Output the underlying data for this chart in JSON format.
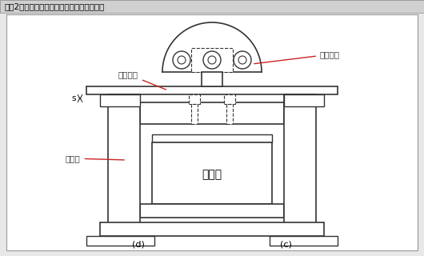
{
  "title": "【囲2】シャンクとダイセットポストの関係",
  "draw_color": "#333333",
  "red_color": "#cc2222",
  "label_shank": "シャンク",
  "label_slide": "スライド",
  "label_post": "ポスト",
  "label_kanagata": "金　型",
  "label_s": "s",
  "label_d": "(d)",
  "label_c": "(c)",
  "bg_outer": "#e8e8e8",
  "bg_inner": "#ffffff",
  "title_bg": "#d0d0d0"
}
